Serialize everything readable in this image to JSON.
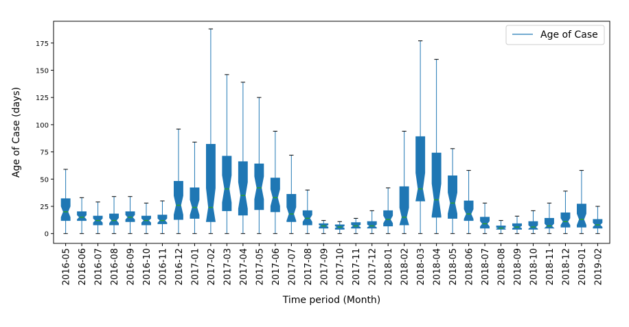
{
  "chart_data": {
    "type": "boxplot",
    "title": "",
    "xlabel": "Time period (Month)",
    "ylabel": "Age of Case (days)",
    "ylim": [
      -9,
      195
    ],
    "yticks": [
      0,
      25,
      50,
      75,
      100,
      125,
      150,
      175
    ],
    "legend": {
      "label": "Age of Case",
      "placement": "top-right"
    },
    "colors": {
      "box": "#1f77b4",
      "median": "#2ca02c",
      "whisker": "#1f77b4",
      "cap": "#000000"
    },
    "notched": true,
    "categories": [
      "2016-05",
      "2016-06",
      "2016-07",
      "2016-08",
      "2016-09",
      "2016-10",
      "2016-11",
      "2016-12",
      "2017-01",
      "2017-02",
      "2017-03",
      "2017-04",
      "2017-05",
      "2017-06",
      "2017-07",
      "2017-08",
      "2017-09",
      "2017-10",
      "2017-11",
      "2017-12",
      "2018-01",
      "2018-02",
      "2018-03",
      "2018-04",
      "2018-05",
      "2018-06",
      "2018-07",
      "2018-08",
      "2018-09",
      "2018-10",
      "2018-11",
      "2018-12",
      "2019-01",
      "2019-02"
    ],
    "boxes": [
      {
        "whislo": 0,
        "q1": 12,
        "med": 20,
        "q3": 32,
        "whishi": 59
      },
      {
        "whislo": 0,
        "q1": 12,
        "med": 15,
        "q3": 20,
        "whishi": 33
      },
      {
        "whislo": 0,
        "q1": 8,
        "med": 12,
        "q3": 16,
        "whishi": 29
      },
      {
        "whislo": 0,
        "q1": 8,
        "med": 12,
        "q3": 18,
        "whishi": 34
      },
      {
        "whislo": 0,
        "q1": 11,
        "med": 15,
        "q3": 20,
        "whishi": 34
      },
      {
        "whislo": 0,
        "q1": 8,
        "med": 12,
        "q3": 16,
        "whishi": 28
      },
      {
        "whislo": 0,
        "q1": 9,
        "med": 12,
        "q3": 17,
        "whishi": 30
      },
      {
        "whislo": 0,
        "q1": 13,
        "med": 26,
        "q3": 48,
        "whishi": 96
      },
      {
        "whislo": 0,
        "q1": 14,
        "med": 24,
        "q3": 42,
        "whishi": 84
      },
      {
        "whislo": 0,
        "q1": 11,
        "med": 24,
        "q3": 82,
        "whishi": 188
      },
      {
        "whislo": 0,
        "q1": 21,
        "med": 41,
        "q3": 71,
        "whishi": 146
      },
      {
        "whislo": 0,
        "q1": 17,
        "med": 35,
        "q3": 66,
        "whishi": 139
      },
      {
        "whislo": 0,
        "q1": 22,
        "med": 42,
        "q3": 64,
        "whishi": 125
      },
      {
        "whislo": 0,
        "q1": 20,
        "med": 33,
        "q3": 51,
        "whishi": 94
      },
      {
        "whislo": 0,
        "q1": 11,
        "med": 18,
        "q3": 36,
        "whishi": 72
      },
      {
        "whislo": 0,
        "q1": 8,
        "med": 14,
        "q3": 21,
        "whishi": 40
      },
      {
        "whislo": 0,
        "q1": 5,
        "med": 7,
        "q3": 9,
        "whishi": 12
      },
      {
        "whislo": 0,
        "q1": 4,
        "med": 6,
        "q3": 8,
        "whishi": 11
      },
      {
        "whislo": 0,
        "q1": 5,
        "med": 7,
        "q3": 10,
        "whishi": 14
      },
      {
        "whislo": 0,
        "q1": 5,
        "med": 7,
        "q3": 11,
        "whishi": 21
      },
      {
        "whislo": 0,
        "q1": 7,
        "med": 13,
        "q3": 21,
        "whishi": 42
      },
      {
        "whislo": 0,
        "q1": 8,
        "med": 15,
        "q3": 43,
        "whishi": 94
      },
      {
        "whislo": 0,
        "q1": 30,
        "med": 41,
        "q3": 89,
        "whishi": 177
      },
      {
        "whislo": 0,
        "q1": 15,
        "med": 31,
        "q3": 74,
        "whishi": 160
      },
      {
        "whislo": 0,
        "q1": 14,
        "med": 28,
        "q3": 53,
        "whishi": 78
      },
      {
        "whislo": 0,
        "q1": 12,
        "med": 18,
        "q3": 30,
        "whishi": 58
      },
      {
        "whislo": 0,
        "q1": 5,
        "med": 9,
        "q3": 15,
        "whishi": 28
      },
      {
        "whislo": 0,
        "q1": 4,
        "med": 5,
        "q3": 7,
        "whishi": 12
      },
      {
        "whislo": 0,
        "q1": 4,
        "med": 6,
        "q3": 9,
        "whishi": 16
      },
      {
        "whislo": 0,
        "q1": 4,
        "med": 6,
        "q3": 11,
        "whishi": 21
      },
      {
        "whislo": 0,
        "q1": 5,
        "med": 7,
        "q3": 14,
        "whishi": 28
      },
      {
        "whislo": 0,
        "q1": 6,
        "med": 11,
        "q3": 19,
        "whishi": 39
      },
      {
        "whislo": 0,
        "q1": 6,
        "med": 13,
        "q3": 27,
        "whishi": 58
      },
      {
        "whislo": 0,
        "q1": 5,
        "med": 8,
        "q3": 13,
        "whishi": 25
      }
    ]
  }
}
